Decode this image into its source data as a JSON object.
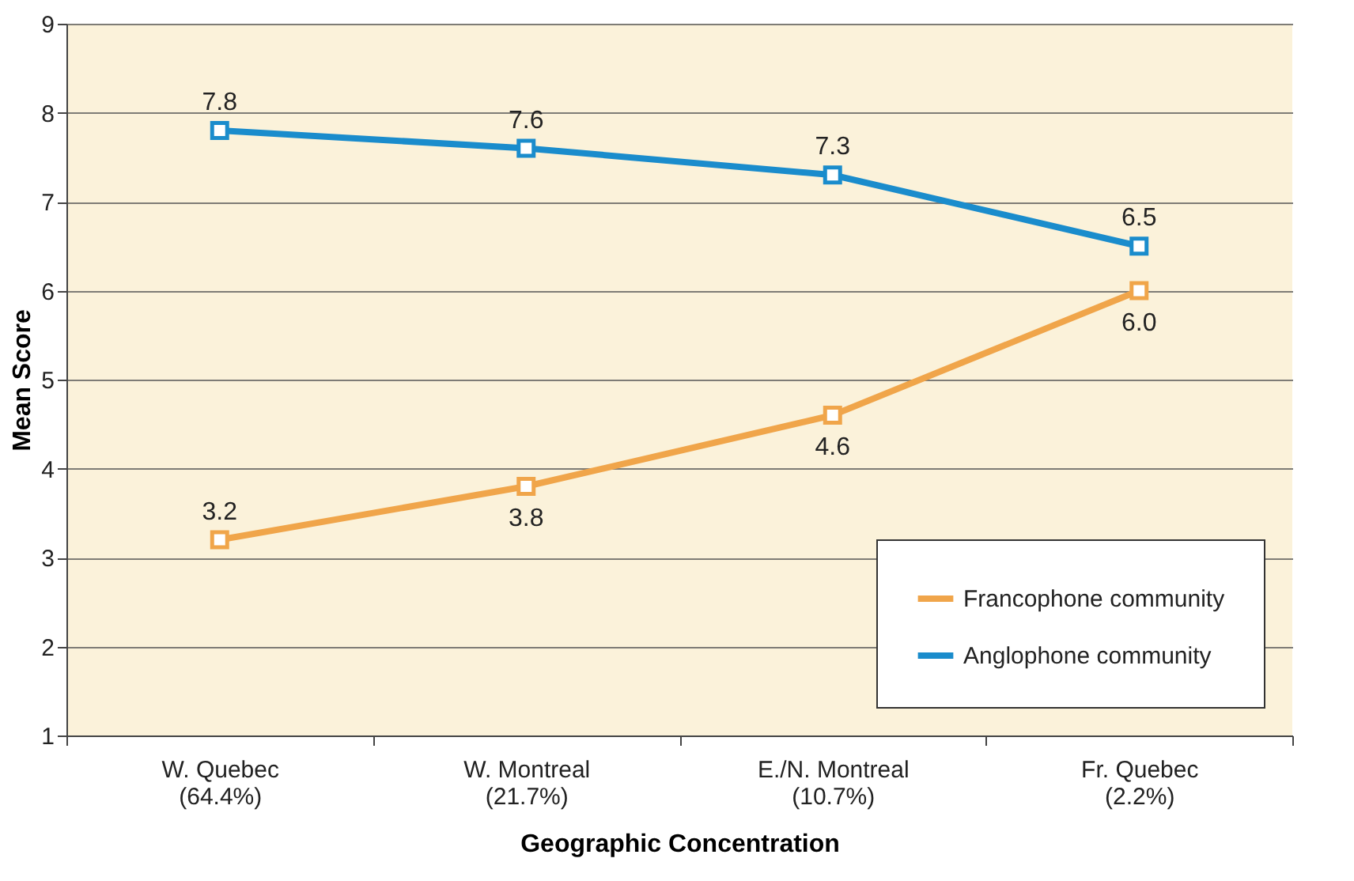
{
  "chart_data": {
    "type": "line",
    "xlabel": "Geographic Concentration",
    "ylabel": "Mean Score",
    "categories": [
      "W. Quebec\n(64.4%)",
      "W. Montreal\n(21.7%)",
      "E./N. Montreal\n(10.7%)",
      "Fr. Quebec\n(2.2%)"
    ],
    "series": [
      {
        "name": "Francophone community",
        "color": "#f0a54a",
        "values": [
          3.2,
          3.8,
          4.6,
          6.0
        ],
        "value_labels": [
          "3.2",
          "3.8",
          "4.6",
          "6.0"
        ]
      },
      {
        "name": "Anglophone community",
        "color": "#1a8ccc",
        "values": [
          7.8,
          7.6,
          7.3,
          6.5
        ],
        "value_labels": [
          "7.8",
          "7.6",
          "7.3",
          "6.5"
        ]
      }
    ],
    "ylim": [
      1,
      9
    ],
    "yticks": [
      1,
      2,
      3,
      4,
      5,
      6,
      7,
      8,
      9
    ],
    "grid": "y",
    "legend": "bottom right",
    "marker": "square",
    "line_style": "solid"
  }
}
